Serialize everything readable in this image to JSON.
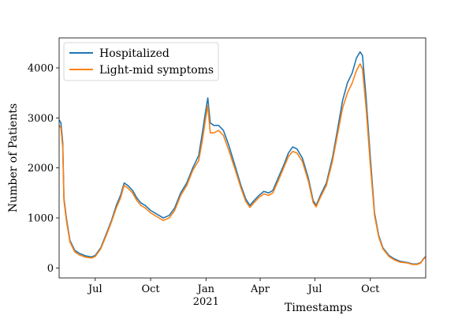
{
  "chart_data": {
    "type": "line",
    "title": "",
    "xlabel": "Timestamps",
    "ylabel": "Number of Patients",
    "xlim": [
      "2020-05-02",
      "2022-01-01"
    ],
    "ylim": [
      -200,
      4600
    ],
    "grid": false,
    "legend_position": "top-left",
    "x_ticks": [
      {
        "date": "2020-07-01",
        "label": "Jul"
      },
      {
        "date": "2020-10-01",
        "label": "Oct"
      },
      {
        "date": "2021-01-01",
        "label": "Jan",
        "sublabel": "2021"
      },
      {
        "date": "2021-04-01",
        "label": "Apr"
      },
      {
        "date": "2021-07-01",
        "label": "Jul"
      },
      {
        "date": "2021-10-01",
        "label": "Oct"
      }
    ],
    "y_ticks": [
      0,
      1000,
      2000,
      3000,
      4000
    ],
    "series": [
      {
        "name": "Hospitalized",
        "color": "#1f77b4",
        "points": [
          [
            "2020-05-02",
            2960
          ],
          [
            "2020-05-05",
            2900
          ],
          [
            "2020-05-08",
            2500
          ],
          [
            "2020-05-10",
            1400
          ],
          [
            "2020-05-14",
            1000
          ],
          [
            "2020-05-20",
            550
          ],
          [
            "2020-05-28",
            350
          ],
          [
            "2020-06-05",
            290
          ],
          [
            "2020-06-15",
            240
          ],
          [
            "2020-06-25",
            220
          ],
          [
            "2020-07-01",
            250
          ],
          [
            "2020-07-10",
            400
          ],
          [
            "2020-07-20",
            700
          ],
          [
            "2020-07-28",
            950
          ],
          [
            "2020-08-05",
            1250
          ],
          [
            "2020-08-12",
            1450
          ],
          [
            "2020-08-18",
            1700
          ],
          [
            "2020-08-24",
            1650
          ],
          [
            "2020-09-01",
            1550
          ],
          [
            "2020-09-08",
            1400
          ],
          [
            "2020-09-15",
            1300
          ],
          [
            "2020-09-22",
            1250
          ],
          [
            "2020-10-01",
            1150
          ],
          [
            "2020-10-08",
            1100
          ],
          [
            "2020-10-15",
            1050
          ],
          [
            "2020-10-22",
            1000
          ],
          [
            "2020-11-01",
            1050
          ],
          [
            "2020-11-10",
            1200
          ],
          [
            "2020-11-20",
            1500
          ],
          [
            "2020-11-30",
            1700
          ],
          [
            "2020-12-10",
            2000
          ],
          [
            "2020-12-20",
            2250
          ],
          [
            "2020-12-26",
            2700
          ],
          [
            "2020-12-31",
            3100
          ],
          [
            "2021-01-04",
            3400
          ],
          [
            "2021-01-08",
            2900
          ],
          [
            "2021-01-14",
            2850
          ],
          [
            "2021-01-22",
            2850
          ],
          [
            "2021-01-30",
            2750
          ],
          [
            "2021-02-08",
            2450
          ],
          [
            "2021-02-18",
            2050
          ],
          [
            "2021-02-28",
            1650
          ],
          [
            "2021-03-08",
            1380
          ],
          [
            "2021-03-15",
            1250
          ],
          [
            "2021-03-22",
            1350
          ],
          [
            "2021-03-30",
            1450
          ],
          [
            "2021-04-07",
            1530
          ],
          [
            "2021-04-15",
            1500
          ],
          [
            "2021-04-22",
            1550
          ],
          [
            "2021-05-01",
            1800
          ],
          [
            "2021-05-10",
            2050
          ],
          [
            "2021-05-18",
            2300
          ],
          [
            "2021-05-25",
            2420
          ],
          [
            "2021-06-01",
            2380
          ],
          [
            "2021-06-10",
            2200
          ],
          [
            "2021-06-20",
            1800
          ],
          [
            "2021-06-28",
            1350
          ],
          [
            "2021-07-03",
            1250
          ],
          [
            "2021-07-10",
            1450
          ],
          [
            "2021-07-20",
            1700
          ],
          [
            "2021-07-30",
            2200
          ],
          [
            "2021-08-08",
            2800
          ],
          [
            "2021-08-16",
            3350
          ],
          [
            "2021-08-24",
            3700
          ],
          [
            "2021-09-01",
            3900
          ],
          [
            "2021-09-08",
            4200
          ],
          [
            "2021-09-14",
            4320
          ],
          [
            "2021-09-18",
            4250
          ],
          [
            "2021-09-24",
            3400
          ],
          [
            "2021-10-01",
            2200
          ],
          [
            "2021-10-08",
            1100
          ],
          [
            "2021-10-15",
            650
          ],
          [
            "2021-10-22",
            400
          ],
          [
            "2021-11-01",
            250
          ],
          [
            "2021-11-10",
            180
          ],
          [
            "2021-11-20",
            130
          ],
          [
            "2021-12-01",
            110
          ],
          [
            "2021-12-10",
            80
          ],
          [
            "2021-12-18",
            80
          ],
          [
            "2021-12-24",
            110
          ],
          [
            "2021-12-28",
            180
          ],
          [
            "2022-01-01",
            230
          ]
        ]
      },
      {
        "name": "Light-mid symptoms",
        "color": "#ff7f0e",
        "points": [
          [
            "2020-05-02",
            2850
          ],
          [
            "2020-05-05",
            2800
          ],
          [
            "2020-05-08",
            2400
          ],
          [
            "2020-05-10",
            1350
          ],
          [
            "2020-05-14",
            950
          ],
          [
            "2020-05-20",
            520
          ],
          [
            "2020-05-28",
            320
          ],
          [
            "2020-06-05",
            260
          ],
          [
            "2020-06-15",
            215
          ],
          [
            "2020-06-25",
            200
          ],
          [
            "2020-07-01",
            230
          ],
          [
            "2020-07-10",
            380
          ],
          [
            "2020-07-20",
            670
          ],
          [
            "2020-07-28",
            920
          ],
          [
            "2020-08-05",
            1200
          ],
          [
            "2020-08-12",
            1400
          ],
          [
            "2020-08-18",
            1650
          ],
          [
            "2020-08-24",
            1600
          ],
          [
            "2020-09-01",
            1500
          ],
          [
            "2020-09-08",
            1350
          ],
          [
            "2020-09-15",
            1250
          ],
          [
            "2020-09-22",
            1200
          ],
          [
            "2020-10-01",
            1100
          ],
          [
            "2020-10-08",
            1050
          ],
          [
            "2020-10-15",
            1000
          ],
          [
            "2020-10-22",
            950
          ],
          [
            "2020-11-01",
            1000
          ],
          [
            "2020-11-10",
            1150
          ],
          [
            "2020-11-20",
            1450
          ],
          [
            "2020-11-30",
            1650
          ],
          [
            "2020-12-10",
            1950
          ],
          [
            "2020-12-20",
            2150
          ],
          [
            "2020-12-26",
            2550
          ],
          [
            "2020-12-31",
            2950
          ],
          [
            "2021-01-04",
            3250
          ],
          [
            "2021-01-08",
            2700
          ],
          [
            "2021-01-14",
            2700
          ],
          [
            "2021-01-22",
            2750
          ],
          [
            "2021-01-30",
            2650
          ],
          [
            "2021-02-08",
            2350
          ],
          [
            "2021-02-18",
            1980
          ],
          [
            "2021-02-28",
            1600
          ],
          [
            "2021-03-08",
            1330
          ],
          [
            "2021-03-15",
            1210
          ],
          [
            "2021-03-22",
            1310
          ],
          [
            "2021-03-30",
            1410
          ],
          [
            "2021-04-07",
            1480
          ],
          [
            "2021-04-15",
            1450
          ],
          [
            "2021-04-22",
            1500
          ],
          [
            "2021-05-01",
            1740
          ],
          [
            "2021-05-10",
            2000
          ],
          [
            "2021-05-18",
            2230
          ],
          [
            "2021-05-25",
            2330
          ],
          [
            "2021-06-01",
            2300
          ],
          [
            "2021-06-10",
            2130
          ],
          [
            "2021-06-20",
            1740
          ],
          [
            "2021-06-28",
            1310
          ],
          [
            "2021-07-03",
            1220
          ],
          [
            "2021-07-10",
            1410
          ],
          [
            "2021-07-20",
            1650
          ],
          [
            "2021-07-30",
            2130
          ],
          [
            "2021-08-08",
            2700
          ],
          [
            "2021-08-16",
            3200
          ],
          [
            "2021-08-24",
            3500
          ],
          [
            "2021-09-01",
            3700
          ],
          [
            "2021-09-08",
            3950
          ],
          [
            "2021-09-14",
            4080
          ],
          [
            "2021-09-18",
            3980
          ],
          [
            "2021-09-24",
            3200
          ],
          [
            "2021-10-01",
            2050
          ],
          [
            "2021-10-08",
            1050
          ],
          [
            "2021-10-15",
            620
          ],
          [
            "2021-10-22",
            380
          ],
          [
            "2021-11-01",
            230
          ],
          [
            "2021-11-10",
            160
          ],
          [
            "2021-11-20",
            115
          ],
          [
            "2021-12-01",
            100
          ],
          [
            "2021-12-10",
            70
          ],
          [
            "2021-12-18",
            70
          ],
          [
            "2021-12-24",
            100
          ],
          [
            "2021-12-28",
            170
          ],
          [
            "2022-01-01",
            220
          ]
        ]
      }
    ]
  }
}
